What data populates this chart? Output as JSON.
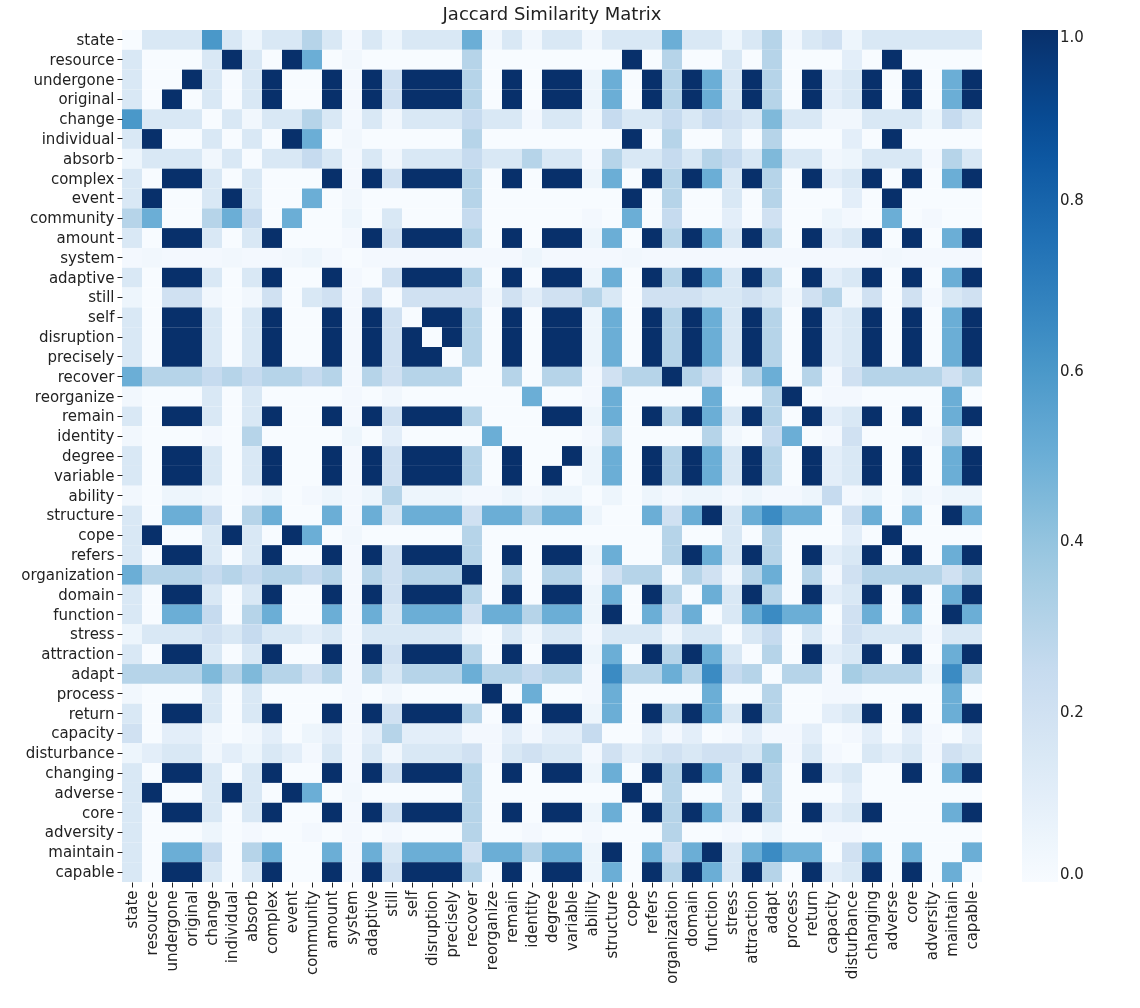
{
  "chart_data": {
    "type": "heatmap",
    "title": "Jaccard Similarity Matrix",
    "categories": [
      "state",
      "resource",
      "undergone",
      "original",
      "change",
      "individual",
      "absorb",
      "complex",
      "event",
      "community",
      "amount",
      "system",
      "adaptive",
      "still",
      "self",
      "disruption",
      "precisely",
      "recover",
      "reorganize",
      "remain",
      "identity",
      "degree",
      "variable",
      "ability",
      "structure",
      "cope",
      "refers",
      "organization",
      "domain",
      "function",
      "stress",
      "attraction",
      "adapt",
      "process",
      "return",
      "capacity",
      "disturbance",
      "changing",
      "adverse",
      "core",
      "adversity",
      "maintain",
      "capable"
    ],
    "y_categories": [
      "state",
      "resource",
      "undergone",
      "original",
      "change",
      "individual",
      "absorb",
      "complex",
      "event",
      "community",
      "amount",
      "system",
      "adaptive",
      "still",
      "self",
      "disruption",
      "precisely",
      "recover",
      "reorganize",
      "remain",
      "identity",
      "degree",
      "variable",
      "ability",
      "structure",
      "cope",
      "refers",
      "organization",
      "domain",
      "function",
      "stress",
      "attraction",
      "adapt",
      "process",
      "return",
      "capacity",
      "disturbance",
      "changing",
      "adverse",
      "core",
      "adversity",
      "maintain",
      "capable"
    ],
    "cells": [
      [
        0,
        0.15,
        0.15,
        0.15,
        0.6,
        0.15,
        0.05,
        0.15,
        0.15,
        0.3,
        0.15,
        0.02,
        0.15,
        0.05,
        0.15,
        0.15,
        0.15,
        0.5,
        0.03,
        0.15,
        0.03,
        0.15,
        0.15,
        0.03,
        0.15,
        0.15,
        0.15,
        0.5,
        0.15,
        0.15,
        0.05,
        0.15,
        0.3,
        0.03,
        0.15,
        0.2,
        0.05,
        0.15,
        0.15,
        0.15,
        0.15,
        0.15,
        0.15
      ],
      [
        0.15,
        0,
        0,
        0,
        0.15,
        1,
        0.15,
        0,
        1,
        0.5,
        0,
        0.03,
        0,
        0,
        0,
        0,
        0,
        0.3,
        0,
        0,
        0,
        0,
        0,
        0,
        0,
        1,
        0,
        0.3,
        0,
        0,
        0.15,
        0,
        0.3,
        0,
        0,
        0,
        0.1,
        0,
        1,
        0,
        0,
        0,
        0
      ],
      [
        0.15,
        0,
        0,
        1,
        0.15,
        0,
        0.15,
        1,
        0,
        0,
        1,
        0.02,
        1,
        0.2,
        1,
        1,
        1,
        0.3,
        0,
        1,
        0,
        1,
        1,
        0.05,
        0.5,
        0,
        1,
        0.3,
        1,
        0.5,
        0.15,
        1,
        0.3,
        0,
        1,
        0.1,
        0.15,
        1,
        0,
        1,
        0,
        0.5,
        1
      ],
      [
        0.15,
        0,
        1,
        0,
        0.15,
        0,
        0.15,
        1,
        0,
        0,
        1,
        0.02,
        1,
        0.2,
        1,
        1,
        1,
        0.3,
        0,
        1,
        0,
        1,
        1,
        0.05,
        0.5,
        0,
        1,
        0.3,
        1,
        0.5,
        0.15,
        1,
        0.3,
        0,
        1,
        0.1,
        0.15,
        1,
        0,
        1,
        0,
        0.5,
        1
      ],
      [
        0.6,
        0.15,
        0.15,
        0.15,
        0,
        0.15,
        0.03,
        0.15,
        0.15,
        0.3,
        0.15,
        0.02,
        0.15,
        0.03,
        0.15,
        0.15,
        0.15,
        0.25,
        0.15,
        0.15,
        0.02,
        0.15,
        0.15,
        0.03,
        0.25,
        0.15,
        0.15,
        0.25,
        0.15,
        0.25,
        0.2,
        0.15,
        0.45,
        0.15,
        0.15,
        0.03,
        0.03,
        0.15,
        0.15,
        0.15,
        0.05,
        0.25,
        0.15
      ],
      [
        0.15,
        1,
        0,
        0,
        0.15,
        0,
        0.15,
        0,
        1,
        0.5,
        0,
        0.03,
        0,
        0,
        0,
        0,
        0,
        0.3,
        0,
        0,
        0,
        0,
        0,
        0,
        0,
        1,
        0,
        0.3,
        0,
        0,
        0.15,
        0,
        0.3,
        0,
        0,
        0,
        0.1,
        0,
        1,
        0,
        0,
        0,
        0
      ],
      [
        0.05,
        0.15,
        0.15,
        0.15,
        0.03,
        0.15,
        0,
        0.15,
        0.15,
        0.25,
        0.15,
        0.02,
        0.15,
        0.03,
        0.15,
        0.15,
        0.15,
        0.25,
        0.15,
        0.15,
        0.3,
        0.15,
        0.15,
        0.02,
        0.3,
        0.15,
        0.15,
        0.25,
        0.15,
        0.3,
        0.25,
        0.15,
        0.45,
        0.15,
        0.15,
        0.03,
        0.05,
        0.15,
        0.15,
        0.15,
        0.02,
        0.3,
        0.15
      ],
      [
        0.15,
        0,
        1,
        1,
        0.15,
        0,
        0.15,
        0,
        0,
        0,
        1,
        0.02,
        1,
        0.2,
        1,
        1,
        1,
        0.3,
        0,
        1,
        0,
        1,
        1,
        0.05,
        0.5,
        0,
        1,
        0.3,
        1,
        0.5,
        0.15,
        1,
        0.3,
        0,
        1,
        0.1,
        0.15,
        1,
        0,
        1,
        0,
        0.5,
        1
      ],
      [
        0.15,
        1,
        0,
        0,
        0.15,
        1,
        0.15,
        0,
        0,
        0.5,
        0,
        0.03,
        0,
        0,
        0,
        0,
        0,
        0.3,
        0,
        0,
        0,
        0,
        0,
        0,
        0,
        1,
        0,
        0.3,
        0,
        0,
        0.15,
        0,
        0.3,
        0,
        0,
        0,
        0.1,
        0,
        1,
        0,
        0,
        0,
        0
      ],
      [
        0.3,
        0.5,
        0,
        0,
        0.3,
        0.5,
        0.25,
        0,
        0.5,
        0,
        0,
        0.05,
        0,
        0.15,
        0,
        0,
        0,
        0.25,
        0,
        0,
        0,
        0,
        0,
        0.02,
        0,
        0.5,
        0,
        0.25,
        0,
        0,
        0.1,
        0,
        0.2,
        0,
        0,
        0.05,
        0.02,
        0,
        0.5,
        0,
        0.02,
        0,
        0
      ],
      [
        0.15,
        0,
        1,
        1,
        0.15,
        0,
        0.15,
        1,
        0,
        0,
        0,
        0.02,
        1,
        0.2,
        1,
        1,
        1,
        0.3,
        0,
        1,
        0,
        1,
        1,
        0.05,
        0.5,
        0,
        1,
        0.3,
        1,
        0.5,
        0.15,
        1,
        0.3,
        0,
        1,
        0.1,
        0.15,
        1,
        0,
        1,
        0,
        0.5,
        1
      ],
      [
        0.02,
        0.03,
        0.02,
        0.02,
        0.02,
        0.03,
        0.02,
        0.02,
        0.03,
        0.05,
        0.02,
        0,
        0.02,
        0.02,
        0.02,
        0.02,
        0.02,
        0.02,
        0.02,
        0.02,
        0.05,
        0.02,
        0.02,
        0.02,
        0.02,
        0.03,
        0.02,
        0.02,
        0.02,
        0.02,
        0.02,
        0.02,
        0.02,
        0.02,
        0.02,
        0.02,
        0.02,
        0.02,
        0.03,
        0.02,
        0.02,
        0.02,
        0.02
      ],
      [
        0.15,
        0,
        1,
        1,
        0.15,
        0,
        0.15,
        1,
        0,
        0,
        1,
        0.02,
        0,
        0.2,
        1,
        1,
        1,
        0.3,
        0,
        1,
        0,
        1,
        1,
        0.05,
        0.5,
        0,
        1,
        0.3,
        1,
        0.5,
        0.15,
        1,
        0.3,
        0,
        1,
        0.1,
        0.15,
        1,
        0,
        1,
        0,
        0.5,
        1
      ],
      [
        0.05,
        0,
        0.2,
        0.2,
        0.03,
        0,
        0.03,
        0.2,
        0,
        0.15,
        0.2,
        0.02,
        0.2,
        0,
        0.2,
        0.2,
        0.2,
        0.2,
        0.03,
        0.2,
        0.1,
        0.2,
        0.2,
        0.3,
        0.15,
        0,
        0.2,
        0.2,
        0.2,
        0.15,
        0.15,
        0.2,
        0.15,
        0.03,
        0.2,
        0.3,
        0.03,
        0.2,
        0,
        0.2,
        0.02,
        0.15,
        0.2
      ],
      [
        0.15,
        0,
        1,
        1,
        0.15,
        0,
        0.15,
        1,
        0,
        0,
        1,
        0.02,
        1,
        0.2,
        0,
        1,
        1,
        0.3,
        0,
        1,
        0,
        1,
        1,
        0.05,
        0.5,
        0,
        1,
        0.3,
        1,
        0.5,
        0.15,
        1,
        0.3,
        0,
        1,
        0.1,
        0.15,
        1,
        0,
        1,
        0,
        0.5,
        1
      ],
      [
        0.15,
        0,
        1,
        1,
        0.15,
        0,
        0.15,
        1,
        0,
        0,
        1,
        0.02,
        1,
        0.2,
        1,
        0,
        1,
        0.3,
        0,
        1,
        0,
        1,
        1,
        0.05,
        0.5,
        0,
        1,
        0.3,
        1,
        0.5,
        0.15,
        1,
        0.3,
        0,
        1,
        0.1,
        0.15,
        1,
        0,
        1,
        0,
        0.5,
        1
      ],
      [
        0.15,
        0,
        1,
        1,
        0.15,
        0,
        0.15,
        1,
        0,
        0,
        1,
        0.02,
        1,
        0.2,
        1,
        1,
        0,
        0.3,
        0,
        1,
        0,
        1,
        1,
        0.05,
        0.5,
        0,
        1,
        0.3,
        1,
        0.5,
        0.15,
        1,
        0.3,
        0,
        1,
        0.1,
        0.15,
        1,
        0,
        1,
        0,
        0.5,
        1
      ],
      [
        0.5,
        0.3,
        0.3,
        0.3,
        0.25,
        0.3,
        0.25,
        0.3,
        0.3,
        0.25,
        0.3,
        0.02,
        0.3,
        0.2,
        0.3,
        0.3,
        0.3,
        0,
        0,
        0.3,
        0,
        0.3,
        0.3,
        0.02,
        0.2,
        0.3,
        0.3,
        1,
        0.3,
        0.2,
        0.03,
        0.3,
        0.5,
        0,
        0.3,
        0.02,
        0.2,
        0.3,
        0.3,
        0.3,
        0.3,
        0.2,
        0.3
      ],
      [
        0.03,
        0,
        0,
        0,
        0.15,
        0,
        0.15,
        0,
        0,
        0,
        0,
        0.02,
        0,
        0.03,
        0,
        0,
        0,
        0,
        0,
        0,
        0.5,
        0,
        0,
        0.02,
        0.5,
        0,
        0,
        0,
        0,
        0.5,
        0,
        0,
        0.3,
        1,
        0,
        0.02,
        0.02,
        0,
        0,
        0,
        0,
        0.5,
        0
      ],
      [
        0.15,
        0,
        1,
        1,
        0.15,
        0,
        0.15,
        1,
        0,
        0,
        1,
        0.02,
        1,
        0.2,
        1,
        1,
        1,
        0.3,
        0,
        0,
        0,
        1,
        1,
        0.05,
        0.5,
        0,
        1,
        0.3,
        1,
        0.5,
        0.15,
        1,
        0.3,
        0,
        1,
        0.1,
        0.15,
        1,
        0,
        1,
        0,
        0.5,
        1
      ],
      [
        0.03,
        0,
        0,
        0,
        0.02,
        0,
        0.3,
        0,
        0,
        0,
        0,
        0.05,
        0,
        0.1,
        0,
        0,
        0,
        0,
        0.5,
        0,
        0,
        0,
        0,
        0.02,
        0.3,
        0,
        0,
        0,
        0,
        0.3,
        0.03,
        0,
        0.25,
        0.5,
        0,
        0.02,
        0.2,
        0,
        0,
        0,
        0.02,
        0.3,
        0
      ],
      [
        0.15,
        0,
        1,
        1,
        0.15,
        0,
        0.15,
        1,
        0,
        0,
        1,
        0.02,
        1,
        0.2,
        1,
        1,
        1,
        0.3,
        0,
        1,
        0,
        0,
        1,
        0.05,
        0.5,
        0,
        1,
        0.3,
        1,
        0.5,
        0.15,
        1,
        0.3,
        0,
        1,
        0.1,
        0.15,
        1,
        0,
        1,
        0,
        0.5,
        1
      ],
      [
        0.15,
        0,
        1,
        1,
        0.15,
        0,
        0.15,
        1,
        0,
        0,
        1,
        0.02,
        1,
        0.2,
        1,
        1,
        1,
        0.3,
        0,
        1,
        0,
        1,
        0,
        0.05,
        0.5,
        0,
        1,
        0.3,
        1,
        0.5,
        0.15,
        1,
        0.3,
        0,
        1,
        0.1,
        0.15,
        1,
        0,
        1,
        0,
        0.5,
        1
      ],
      [
        0.03,
        0,
        0.05,
        0.05,
        0.03,
        0,
        0.02,
        0.05,
        0,
        0.02,
        0.05,
        0.02,
        0.05,
        0.3,
        0.05,
        0.05,
        0.05,
        0.02,
        0.02,
        0.05,
        0.02,
        0.05,
        0.05,
        0,
        0.05,
        0,
        0.05,
        0.02,
        0.05,
        0.05,
        0.02,
        0.05,
        0.02,
        0.02,
        0.05,
        0.25,
        0.02,
        0.05,
        0,
        0.05,
        0.02,
        0.05,
        0.05
      ],
      [
        0.15,
        0,
        0.5,
        0.5,
        0.25,
        0,
        0.3,
        0.5,
        0,
        0,
        0.5,
        0.02,
        0.5,
        0.15,
        0.5,
        0.5,
        0.5,
        0.2,
        0.5,
        0.5,
        0.3,
        0.5,
        0.5,
        0.05,
        0,
        0,
        0.5,
        0.2,
        0.5,
        1,
        0.15,
        0.5,
        0.65,
        0.5,
        0.5,
        0,
        0.2,
        0.5,
        0,
        0.5,
        0,
        1,
        0.5
      ],
      [
        0.15,
        1,
        0,
        0,
        0.15,
        1,
        0.15,
        0,
        1,
        0.5,
        0,
        0.03,
        0,
        0,
        0,
        0,
        0,
        0.3,
        0,
        0,
        0,
        0,
        0,
        0,
        0,
        0,
        0,
        0.3,
        0,
        0,
        0.15,
        0,
        0.3,
        0,
        0,
        0,
        0.1,
        0,
        1,
        0,
        0,
        0,
        0
      ],
      [
        0.15,
        0,
        1,
        1,
        0.15,
        0,
        0.15,
        1,
        0,
        0,
        1,
        0.02,
        1,
        0.2,
        1,
        1,
        1,
        0.3,
        0,
        1,
        0,
        1,
        1,
        0.05,
        0.5,
        0,
        0,
        0.3,
        1,
        0.5,
        0.15,
        1,
        0.3,
        0,
        1,
        0.1,
        0.15,
        1,
        0,
        1,
        0,
        0.5,
        1
      ],
      [
        0.5,
        0.3,
        0.3,
        0.3,
        0.25,
        0.3,
        0.25,
        0.3,
        0.3,
        0.25,
        0.3,
        0.02,
        0.3,
        0.2,
        0.3,
        0.3,
        0.3,
        1,
        0,
        0.3,
        0,
        0.3,
        0.3,
        0.02,
        0.2,
        0.3,
        0.3,
        0,
        0.3,
        0.2,
        0.03,
        0.3,
        0.5,
        0,
        0.3,
        0.02,
        0.2,
        0.3,
        0.3,
        0.3,
        0.3,
        0.2,
        0.3
      ],
      [
        0.15,
        0,
        1,
        1,
        0.15,
        0,
        0.15,
        1,
        0,
        0,
        1,
        0.02,
        1,
        0.2,
        1,
        1,
        1,
        0.3,
        0,
        1,
        0,
        1,
        1,
        0.05,
        0.5,
        0,
        1,
        0.3,
        0,
        0.5,
        0.15,
        1,
        0.3,
        0,
        1,
        0.1,
        0.15,
        1,
        0,
        1,
        0,
        0.5,
        1
      ],
      [
        0.15,
        0,
        0.5,
        0.5,
        0.25,
        0,
        0.3,
        0.5,
        0,
        0,
        0.5,
        0.02,
        0.5,
        0.15,
        0.5,
        0.5,
        0.5,
        0.2,
        0.5,
        0.5,
        0.3,
        0.5,
        0.5,
        0.05,
        1,
        0,
        0.5,
        0.2,
        0.5,
        0,
        0.15,
        0.5,
        0.65,
        0.5,
        0.5,
        0,
        0.2,
        0.5,
        0,
        0.5,
        0,
        1,
        0.5
      ],
      [
        0.05,
        0.15,
        0.15,
        0.15,
        0.2,
        0.15,
        0.25,
        0.15,
        0.15,
        0.1,
        0.15,
        0.02,
        0.15,
        0.15,
        0.15,
        0.15,
        0.15,
        0.03,
        0,
        0.15,
        0.03,
        0.15,
        0.15,
        0.02,
        0.15,
        0.15,
        0.15,
        0.03,
        0.15,
        0.15,
        0,
        0.15,
        0.25,
        0,
        0.15,
        0.02,
        0.2,
        0.15,
        0.15,
        0.15,
        0.02,
        0.15,
        0.15
      ],
      [
        0.15,
        0,
        1,
        1,
        0.15,
        0,
        0.15,
        1,
        0,
        0,
        1,
        0.02,
        1,
        0.2,
        1,
        1,
        1,
        0.3,
        0,
        1,
        0,
        1,
        1,
        0.05,
        0.5,
        0,
        1,
        0.3,
        1,
        0.5,
        0.15,
        0,
        0.3,
        0,
        1,
        0.1,
        0.15,
        1,
        0,
        1,
        0,
        0.5,
        1
      ],
      [
        0.3,
        0.3,
        0.3,
        0.3,
        0.45,
        0.3,
        0.45,
        0.3,
        0.3,
        0.2,
        0.3,
        0.02,
        0.3,
        0.15,
        0.3,
        0.3,
        0.3,
        0.5,
        0.3,
        0.3,
        0.25,
        0.3,
        0.3,
        0.02,
        0.65,
        0.3,
        0.3,
        0.5,
        0.3,
        0.65,
        0.25,
        0.3,
        0,
        0.3,
        0.3,
        0.02,
        0.35,
        0.3,
        0.3,
        0.3,
        0.05,
        0.65,
        0.3
      ],
      [
        0.03,
        0,
        0,
        0,
        0.15,
        0,
        0.15,
        0,
        0,
        0,
        0,
        0.02,
        0,
        0.03,
        0,
        0,
        0,
        0,
        1,
        0,
        0.5,
        0,
        0,
        0.02,
        0.5,
        0,
        0,
        0,
        0,
        0.5,
        0,
        0,
        0.3,
        0,
        0,
        0.02,
        0.02,
        0,
        0,
        0,
        0,
        0.5,
        0
      ],
      [
        0.15,
        0,
        1,
        1,
        0.15,
        0,
        0.15,
        1,
        0,
        0,
        1,
        0.02,
        1,
        0.2,
        1,
        1,
        1,
        0.3,
        0,
        1,
        0,
        1,
        1,
        0.05,
        0.5,
        0,
        1,
        0.3,
        1,
        0.5,
        0.15,
        1,
        0.3,
        0,
        0,
        0.1,
        0.15,
        1,
        0,
        1,
        0,
        0.5,
        1
      ],
      [
        0.2,
        0,
        0.1,
        0.1,
        0.03,
        0,
        0.03,
        0.1,
        0,
        0.05,
        0.1,
        0.02,
        0.1,
        0.3,
        0.1,
        0.1,
        0.1,
        0.02,
        0.02,
        0.1,
        0.02,
        0.1,
        0.1,
        0.25,
        0,
        0,
        0.1,
        0.02,
        0.1,
        0,
        0.02,
        0.1,
        0.02,
        0.02,
        0.1,
        0,
        0.02,
        0.1,
        0,
        0.1,
        0.02,
        0,
        0.1
      ],
      [
        0.05,
        0.1,
        0.15,
        0.15,
        0.03,
        0.1,
        0.05,
        0.15,
        0.1,
        0.02,
        0.15,
        0.02,
        0.15,
        0.03,
        0.15,
        0.15,
        0.15,
        0.2,
        0.02,
        0.15,
        0.2,
        0.15,
        0.15,
        0.02,
        0.2,
        0.1,
        0.15,
        0.2,
        0.15,
        0.2,
        0.2,
        0.15,
        0.35,
        0.02,
        0.15,
        0.02,
        0,
        0.15,
        0.1,
        0.15,
        0.02,
        0.2,
        0.15
      ],
      [
        0.15,
        0,
        1,
        1,
        0.15,
        0,
        0.15,
        1,
        0,
        0,
        1,
        0.02,
        1,
        0.2,
        1,
        1,
        1,
        0.3,
        0,
        1,
        0,
        1,
        1,
        0.05,
        0.5,
        0,
        1,
        0.3,
        1,
        0.5,
        0.15,
        1,
        0.3,
        0,
        1,
        0.1,
        0.15,
        0,
        0,
        1,
        0,
        0.5,
        1
      ],
      [
        0.15,
        1,
        0,
        0,
        0.15,
        1,
        0.15,
        0,
        1,
        0.5,
        0,
        0.03,
        0,
        0,
        0,
        0,
        0,
        0.3,
        0,
        0,
        0,
        0,
        0,
        0,
        0,
        1,
        0,
        0.3,
        0,
        0,
        0.15,
        0,
        0.3,
        0,
        0,
        0,
        0.1,
        0,
        0,
        0,
        0,
        0,
        0
      ],
      [
        0.15,
        0,
        1,
        1,
        0.15,
        0,
        0.15,
        1,
        0,
        0,
        1,
        0.02,
        1,
        0.2,
        1,
        1,
        1,
        0.3,
        0,
        1,
        0,
        1,
        1,
        0.05,
        0.5,
        0,
        1,
        0.3,
        1,
        0.5,
        0.15,
        1,
        0.3,
        0,
        1,
        0.1,
        0.15,
        1,
        0,
        0,
        0,
        0.5,
        1
      ],
      [
        0.15,
        0,
        0,
        0,
        0.05,
        0,
        0.02,
        0,
        0,
        0.02,
        0,
        0.02,
        0,
        0.02,
        0,
        0,
        0,
        0.3,
        0,
        0,
        0.02,
        0,
        0,
        0.02,
        0,
        0,
        0,
        0.3,
        0,
        0,
        0.02,
        0,
        0.05,
        0,
        0,
        0.02,
        0.02,
        0,
        0,
        0,
        0,
        0,
        0
      ],
      [
        0.15,
        0,
        0.5,
        0.5,
        0.25,
        0,
        0.3,
        0.5,
        0,
        0,
        0.5,
        0.02,
        0.5,
        0.15,
        0.5,
        0.5,
        0.5,
        0.2,
        0.5,
        0.5,
        0.3,
        0.5,
        0.5,
        0.05,
        1,
        0,
        0.5,
        0.2,
        0.5,
        1,
        0.15,
        0.5,
        0.65,
        0.5,
        0.5,
        0,
        0.2,
        0.5,
        0,
        0.5,
        0,
        0,
        0.5
      ],
      [
        0.15,
        0,
        1,
        1,
        0.15,
        0,
        0.15,
        1,
        0,
        0,
        1,
        0.02,
        1,
        0.2,
        1,
        1,
        1,
        0.3,
        0,
        1,
        0,
        1,
        1,
        0.05,
        0.5,
        0,
        1,
        0.3,
        1,
        0.5,
        0.15,
        1,
        0.3,
        0,
        1,
        0.1,
        0.15,
        1,
        0,
        1,
        0,
        0.5,
        0
      ]
    ],
    "clim": [
      0,
      1
    ],
    "cticks": [
      {
        "value": 0,
        "label": "0.0"
      },
      {
        "value": 0.2,
        "label": "0.2"
      },
      {
        "value": 0.4,
        "label": "0.4"
      },
      {
        "value": 0.6,
        "label": "0.6"
      },
      {
        "value": 0.8,
        "label": "0.8"
      },
      {
        "value": 1,
        "label": "1.0"
      }
    ]
  }
}
